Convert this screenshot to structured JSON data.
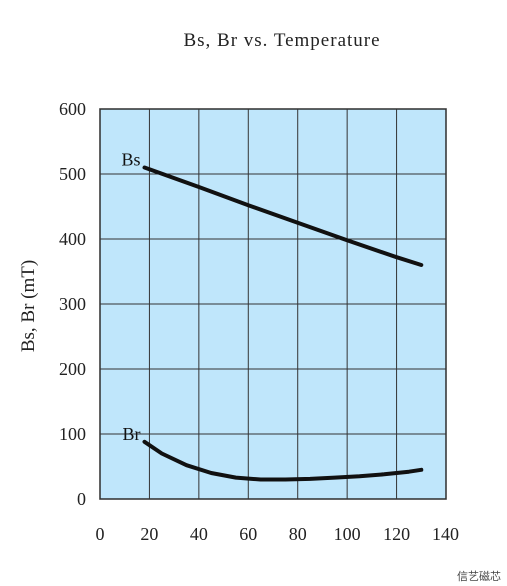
{
  "chart_data": {
    "type": "line",
    "title": "Bs, Br  vs. Temperature",
    "xlabel": "",
    "ylabel": "Bs, Br (mT)",
    "xlim": [
      0,
      140
    ],
    "ylim": [
      0,
      600
    ],
    "xticks": [
      "0",
      "20",
      "40",
      "60",
      "80",
      "100",
      "120",
      "140"
    ],
    "yticks": [
      "0",
      "100",
      "200",
      "300",
      "400",
      "500",
      "600"
    ],
    "grid": true,
    "plot_background": "#bfe6fb",
    "line_color": "#111111",
    "series": [
      {
        "name": "Bs",
        "x": [
          18,
          40,
          60,
          80,
          100,
          120,
          130
        ],
        "y": [
          510,
          480,
          452,
          425,
          398,
          372,
          360
        ]
      },
      {
        "name": "Br",
        "x": [
          18,
          25,
          35,
          45,
          55,
          65,
          75,
          85,
          95,
          105,
          115,
          125,
          130
        ],
        "y": [
          88,
          70,
          52,
          40,
          33,
          30,
          30,
          31,
          33,
          35,
          38,
          42,
          45
        ]
      }
    ]
  },
  "watermark": "信艺磁芯"
}
